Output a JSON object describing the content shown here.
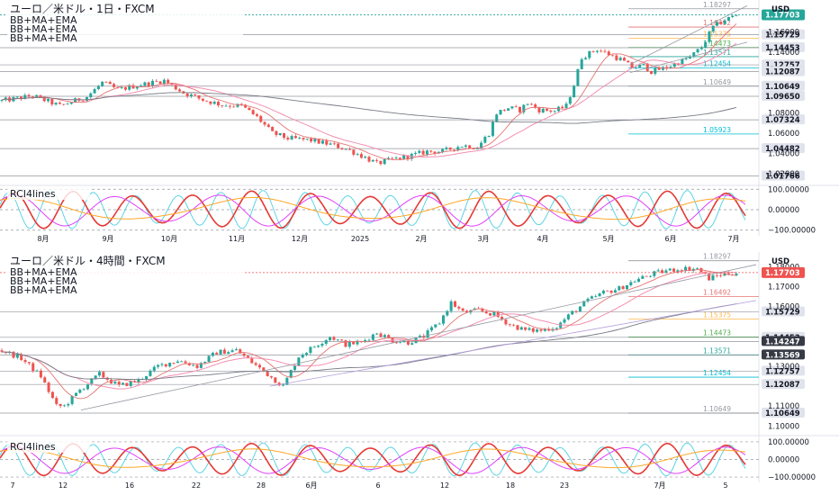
{
  "chart_data": [
    {
      "type": "candlestick",
      "title": "ユーロ／米ドル・1日・FXCM",
      "indicators": [
        "BB+MA+EMA",
        "BB+MA+EMA",
        "BB+MA+EMA"
      ],
      "currency": "USD",
      "last_price": "1.17703",
      "x_ticks": [
        "8月",
        "9月",
        "10月",
        "11月",
        "12月",
        "2025",
        "2月",
        "3月",
        "4月",
        "5月",
        "6月",
        "7月"
      ],
      "y_ticks": [
        "1.16000",
        "1.14000",
        "1.08000",
        "1.06000",
        "1.04000",
        "1.02000"
      ],
      "ylim": [
        1.012,
        1.189
      ],
      "hlines": [
        {
          "label": "1.18297",
          "value": 1.18297,
          "color": "#9598a1"
        },
        {
          "label": "1.16492",
          "value": 1.16492,
          "color": "#e57373"
        },
        {
          "label": "1.15375",
          "value": 1.15375,
          "color": "#ffb74d"
        },
        {
          "label": "1.14473",
          "value": 1.14473,
          "color": "#4caf50"
        },
        {
          "label": "1.13571",
          "value": 1.13571,
          "color": "#26a69a"
        },
        {
          "label": "1.12454",
          "value": 1.12454,
          "color": "#00bcd4"
        },
        {
          "label": "1.10649",
          "value": 1.10649,
          "color": "#9598a1"
        },
        {
          "label": "1.05923",
          "value": 1.05923,
          "color": "#00bcd4"
        }
      ],
      "level_tags": [
        {
          "label": "1.15729",
          "value": 1.15729
        },
        {
          "label": "1.14453",
          "value": 1.14453
        },
        {
          "label": "1.12757",
          "value": 1.12757
        },
        {
          "label": "1.12087",
          "value": 1.12087
        },
        {
          "label": "1.10649",
          "value": 1.10649
        },
        {
          "label": "1.09650",
          "value": 1.0965
        },
        {
          "label": "1.07324",
          "value": 1.07324
        },
        {
          "label": "1.04482",
          "value": 1.04482
        },
        {
          "label": "1.01766",
          "value": 1.01766
        }
      ],
      "price_path": [
        [
          0,
          1.092
        ],
        [
          8,
          1.097
        ],
        [
          15,
          1.087
        ],
        [
          22,
          1.096
        ],
        [
          26,
          1.11
        ],
        [
          30,
          1.103
        ],
        [
          36,
          1.108
        ],
        [
          42,
          1.112
        ],
        [
          47,
          1.1
        ],
        [
          52,
          1.093
        ],
        [
          57,
          1.088
        ],
        [
          62,
          1.087
        ],
        [
          66,
          1.076
        ],
        [
          70,
          1.06
        ],
        [
          74,
          1.055
        ],
        [
          80,
          1.053
        ],
        [
          86,
          1.048
        ],
        [
          90,
          1.043
        ],
        [
          94,
          1.036
        ],
        [
          97,
          1.03
        ],
        [
          101,
          1.034
        ],
        [
          106,
          1.038
        ],
        [
          110,
          1.042
        ],
        [
          114,
          1.042
        ],
        [
          119,
          1.048
        ],
        [
          123,
          1.046
        ],
        [
          126,
          1.06
        ],
        [
          128,
          1.08
        ],
        [
          131,
          1.085
        ],
        [
          134,
          1.083
        ],
        [
          136,
          1.09
        ],
        [
          139,
          1.083
        ],
        [
          143,
          1.082
        ],
        [
          146,
          1.087
        ],
        [
          148,
          1.108
        ],
        [
          150,
          1.135
        ],
        [
          154,
          1.143
        ],
        [
          157,
          1.138
        ],
        [
          160,
          1.133
        ],
        [
          163,
          1.125
        ],
        [
          166,
          1.127
        ],
        [
          168,
          1.121
        ],
        [
          172,
          1.125
        ],
        [
          175,
          1.13
        ],
        [
          178,
          1.135
        ],
        [
          181,
          1.145
        ],
        [
          184,
          1.165
        ],
        [
          187,
          1.172
        ],
        [
          190,
          1.177
        ]
      ],
      "rci": {
        "title": "RCI4lines",
        "y_ticks": [
          "100.00000",
          "0.00000",
          "−100.00000"
        ],
        "ylim": [
          -110,
          110
        ]
      }
    },
    {
      "type": "candlestick",
      "title": "ユーロ／米ドル・4時間・FXCM",
      "indicators": [
        "BB+MA+EMA",
        "BB+MA+EMA",
        "BB+MA+EMA"
      ],
      "currency": "USD",
      "last_price": "1.17703",
      "x_ticks": [
        "7",
        "12",
        "16",
        "22",
        "28",
        "6月",
        "6",
        "12",
        "18",
        "23",
        "7月",
        "5"
      ],
      "y_ticks": [
        "1.18000",
        "1.17000",
        "1.16000",
        "1.13000",
        "1.11000",
        "1.10000"
      ],
      "ylim": [
        1.097,
        1.186
      ],
      "hlines": [
        {
          "label": "1.18297",
          "value": 1.18297,
          "color": "#9598a1"
        },
        {
          "label": "1.16492",
          "value": 1.16492,
          "color": "#e57373"
        },
        {
          "label": "1.15375",
          "value": 1.15375,
          "color": "#ffb74d"
        },
        {
          "label": "1.14473",
          "value": 1.14473,
          "color": "#4caf50"
        },
        {
          "label": "1.13571",
          "value": 1.13571,
          "color": "#26a69a"
        },
        {
          "label": "1.12454",
          "value": 1.12454,
          "color": "#00bcd4"
        },
        {
          "label": "1.10649",
          "value": 1.10649,
          "color": "#9598a1"
        }
      ],
      "level_tags": [
        {
          "label": "1.15729",
          "value": 1.15729
        },
        {
          "label": "1.14453",
          "value": 1.14453
        },
        {
          "label": "1.14247",
          "value": 1.14247,
          "dark": true
        },
        {
          "label": "1.13569",
          "value": 1.13569,
          "dark": true
        },
        {
          "label": "1.12757",
          "value": 1.12757
        },
        {
          "label": "1.12087",
          "value": 1.12087
        },
        {
          "label": "1.10649",
          "value": 1.10649
        }
      ],
      "price_path": [
        [
          0,
          1.138
        ],
        [
          5,
          1.134
        ],
        [
          10,
          1.125
        ],
        [
          14,
          1.11
        ],
        [
          16,
          1.11
        ],
        [
          20,
          1.118
        ],
        [
          25,
          1.126
        ],
        [
          30,
          1.12
        ],
        [
          35,
          1.123
        ],
        [
          40,
          1.13
        ],
        [
          45,
          1.133
        ],
        [
          50,
          1.13
        ],
        [
          55,
          1.137
        ],
        [
          60,
          1.138
        ],
        [
          64,
          1.132
        ],
        [
          68,
          1.126
        ],
        [
          72,
          1.12
        ],
        [
          76,
          1.135
        ],
        [
          80,
          1.14
        ],
        [
          84,
          1.145
        ],
        [
          88,
          1.141
        ],
        [
          92,
          1.142
        ],
        [
          96,
          1.147
        ],
        [
          100,
          1.143
        ],
        [
          104,
          1.142
        ],
        [
          108,
          1.145
        ],
        [
          112,
          1.152
        ],
        [
          115,
          1.162
        ],
        [
          118,
          1.157
        ],
        [
          122,
          1.158
        ],
        [
          126,
          1.156
        ],
        [
          130,
          1.151
        ],
        [
          134,
          1.148
        ],
        [
          138,
          1.148
        ],
        [
          142,
          1.15
        ],
        [
          146,
          1.157
        ],
        [
          150,
          1.163
        ],
        [
          154,
          1.167
        ],
        [
          158,
          1.169
        ],
        [
          162,
          1.173
        ],
        [
          166,
          1.176
        ],
        [
          170,
          1.178
        ],
        [
          174,
          1.179
        ],
        [
          178,
          1.179
        ],
        [
          181,
          1.174
        ],
        [
          184,
          1.176
        ],
        [
          188,
          1.177
        ]
      ],
      "rci": {
        "title": "RCI4lines",
        "y_ticks": [
          "100.00000",
          "0.00000",
          "−100.00000"
        ],
        "ylim": [
          -110,
          110
        ]
      }
    }
  ]
}
